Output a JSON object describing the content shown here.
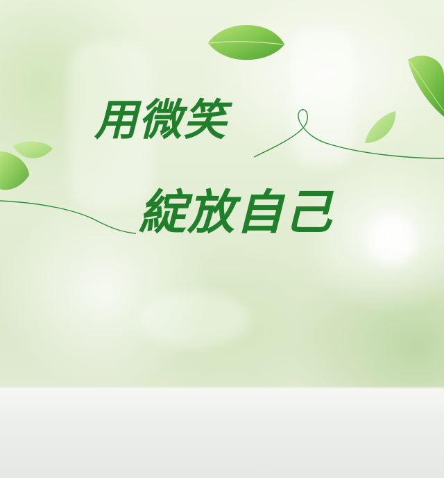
{
  "headline": {
    "line1": "用微笑",
    "line2": "綻放自己"
  },
  "colors": {
    "text_green": "#1f7f2a",
    "leaf_green": "#7cc24a",
    "stroke_green": "#2f8f3a"
  },
  "icons": [
    "leaf-icon"
  ]
}
